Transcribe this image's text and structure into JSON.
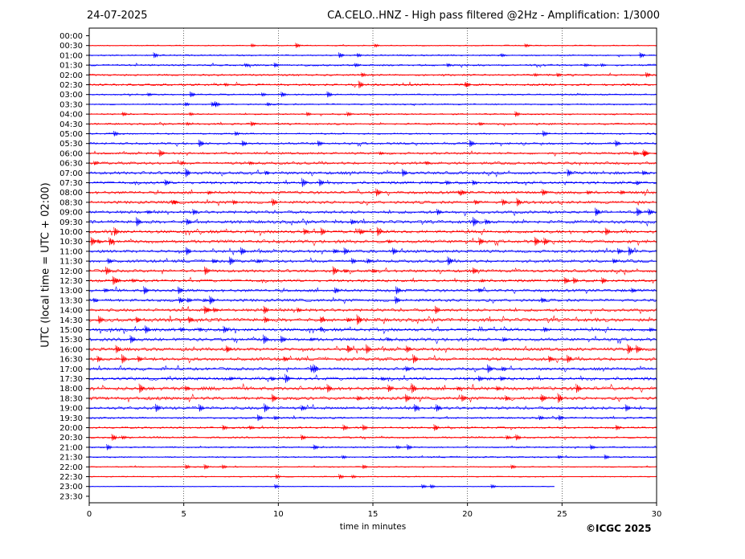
{
  "header": {
    "date": "24-07-2025",
    "title": "CA.CELO..HNZ - High pass filtered @2Hz - Amplification: 1/3000"
  },
  "footer": {
    "copyright": "©ICGC 2025"
  },
  "chart_data": {
    "type": "line",
    "xlabel": "time in minutes",
    "ylabel": "UTC (local time = UTC + 02:00)",
    "xlim": [
      0,
      30
    ],
    "xticks": [
      0,
      5,
      10,
      15,
      20,
      25,
      30
    ],
    "grid": "vertical dotted lines at 5-minute intervals",
    "ytick_labels": [
      "00:00",
      "00:30",
      "01:00",
      "01:30",
      "02:00",
      "02:30",
      "03:00",
      "03:30",
      "04:00",
      "04:30",
      "05:00",
      "05:30",
      "06:00",
      "06:30",
      "07:00",
      "07:30",
      "08:00",
      "08:30",
      "09:00",
      "09:30",
      "10:00",
      "10:30",
      "11:00",
      "11:30",
      "12:00",
      "12:30",
      "13:00",
      "13:30",
      "14:00",
      "14:30",
      "15:00",
      "15:30",
      "16:00",
      "16:30",
      "17:00",
      "17:30",
      "18:00",
      "18:30",
      "19:00",
      "19:30",
      "20:00",
      "20:30",
      "21:00",
      "21:30",
      "22:00",
      "22:30",
      "23:00",
      "23:30"
    ],
    "trace_colors": [
      "#ff0000",
      "#0000ff"
    ],
    "trace_color_pattern": "alternating per hour: red for hours 00–01, blue for 00:30 and 01:30 rows, continuing red/blue alternately",
    "last_recorded_row": "23:00",
    "activity_level": [
      0.0,
      0.3,
      0.4,
      0.5,
      0.5,
      0.6,
      0.4,
      0.4,
      0.4,
      0.5,
      0.4,
      0.6,
      0.6,
      0.7,
      0.8,
      0.8,
      0.8,
      0.8,
      0.8,
      0.9,
      0.9,
      0.9,
      0.8,
      0.8,
      0.8,
      0.8,
      0.8,
      0.8,
      0.8,
      1.0,
      0.9,
      0.9,
      0.9,
      0.9,
      0.8,
      0.9,
      1.0,
      0.9,
      0.8,
      0.5,
      0.5,
      0.5,
      0.4,
      0.4,
      0.3,
      0.3,
      0.2,
      0.0
    ]
  }
}
